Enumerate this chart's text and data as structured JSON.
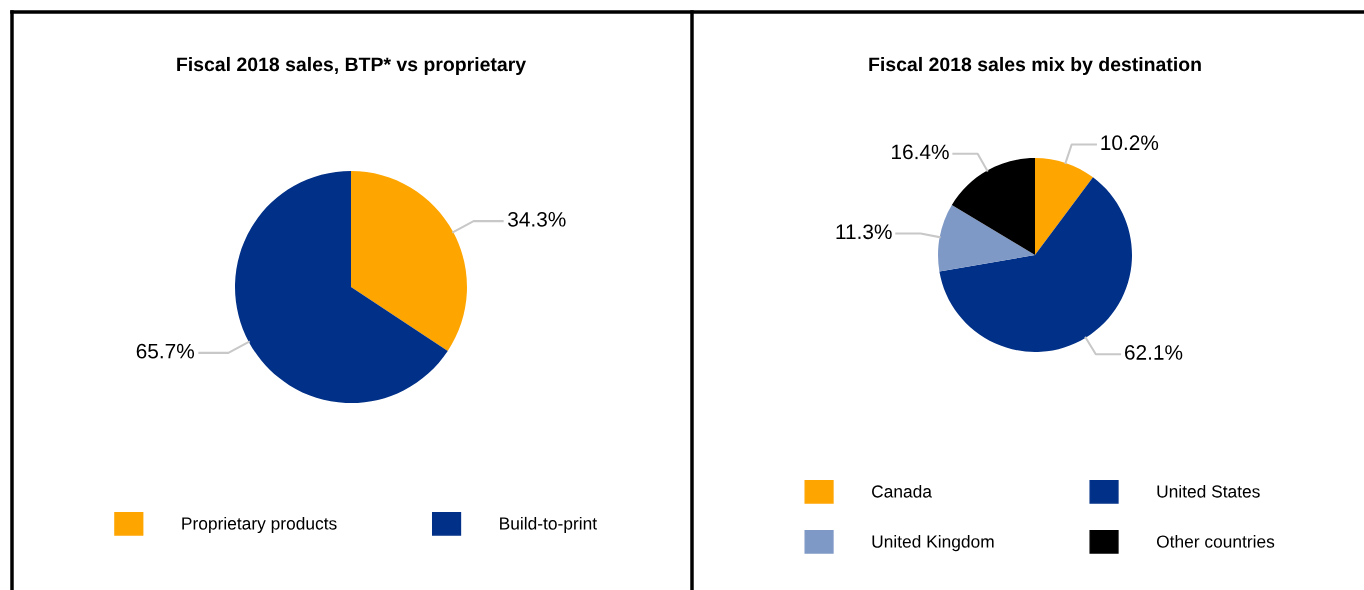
{
  "chart_data": [
    {
      "type": "pie",
      "title": "Fiscal 2018 sales, BTP* vs proprietary",
      "categories": [
        "Proprietary products",
        "Build-to-print"
      ],
      "values": [
        34.3,
        65.7
      ],
      "value_labels": [
        "34.3%",
        "65.7%"
      ],
      "colors": [
        "#ffa500",
        "#003087"
      ],
      "legend": "bottom"
    },
    {
      "type": "pie",
      "title": "Fiscal 2018 sales mix by destination",
      "categories": [
        "Canada",
        "United States",
        "United Kingdom",
        "Other countries"
      ],
      "values": [
        10.2,
        62.1,
        11.3,
        16.4
      ],
      "value_labels": [
        "10.2%",
        "62.1%",
        "11.3%",
        "16.4%"
      ],
      "colors": [
        "#ffa500",
        "#003087",
        "#7f99c6",
        "#000000"
      ],
      "legend": "bottom"
    }
  ]
}
